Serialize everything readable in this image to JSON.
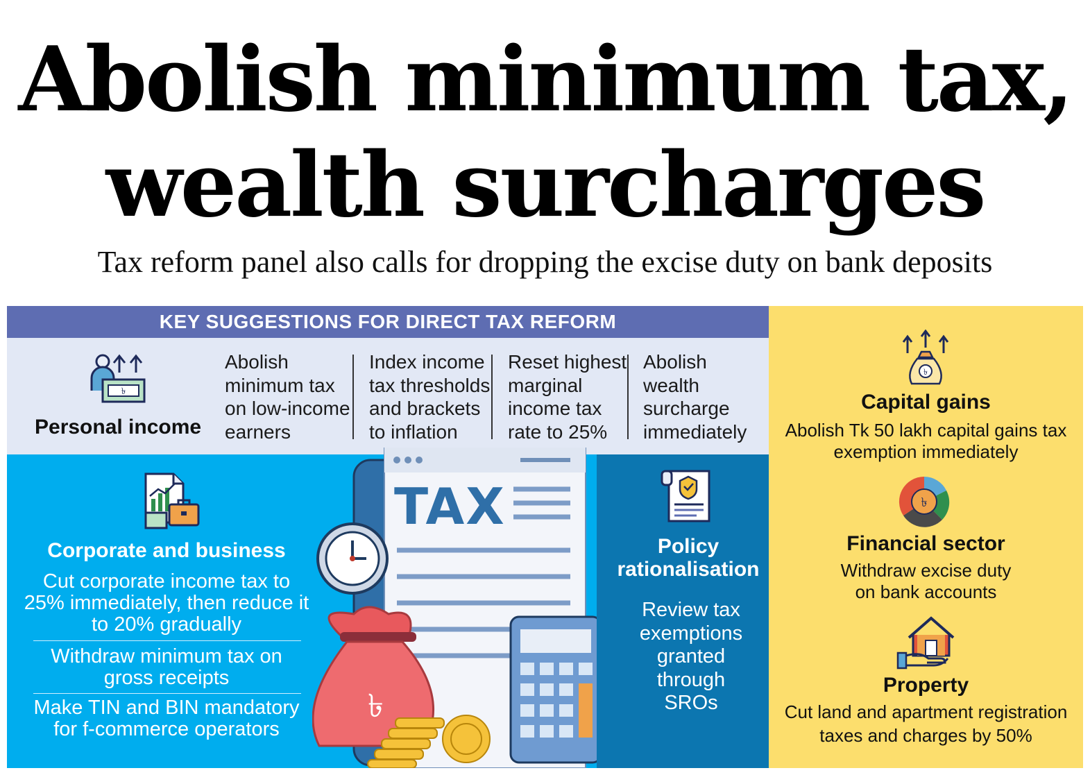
{
  "headline": {
    "line1": "Abolish minimum tax,",
    "line2": "wealth surcharges"
  },
  "subheadline": "Tax reform panel also calls for dropping the excise duty on bank deposits",
  "banner": "KEY SUGGESTIONS FOR DIRECT TAX REFORM",
  "personal_income": {
    "label": "Personal income",
    "items": [
      [
        "Abolish",
        "minimum tax",
        "on low-income",
        "earners"
      ],
      [
        "Index income",
        "tax thresholds",
        "and brackets",
        "to inflation"
      ],
      [
        "Reset highest",
        "marginal",
        "income tax",
        "rate to 25%"
      ],
      [
        "Abolish",
        "wealth",
        "surcharge",
        "immediately"
      ]
    ]
  },
  "corporate": {
    "title": "Corporate and business",
    "items": [
      [
        "Cut corporate income tax to",
        "25% immediately, then reduce it",
        "to 20% gradually"
      ],
      [
        "Withdraw minimum tax on",
        "gross receipts"
      ],
      [
        "Make TIN and BIN mandatory",
        "for f-commerce operators"
      ]
    ]
  },
  "illustration": {
    "doc_title": "TAX",
    "currency_symbol": "৳"
  },
  "policy": {
    "title_line1": "Policy",
    "title_line2": "rationalisation",
    "text": [
      "Review tax",
      "exemptions",
      "granted",
      "through",
      "SROs"
    ]
  },
  "capital_gains": {
    "title": "Capital gains",
    "text": [
      "Abolish Tk 50 lakh capital gains tax",
      "exemption immediately"
    ]
  },
  "financial_sector": {
    "title": "Financial sector",
    "text": [
      "Withdraw excise duty",
      "on bank accounts"
    ]
  },
  "property": {
    "title": "Property",
    "text": [
      "Cut land and apartment registration",
      "taxes and charges by 50%"
    ]
  },
  "colors": {
    "banner": "#5e6db2",
    "personal_bg": "#e2e8f5",
    "corporate_bg": "#00adee",
    "policy_bg": "#0c76b0",
    "right_bg": "#fcde6d"
  }
}
